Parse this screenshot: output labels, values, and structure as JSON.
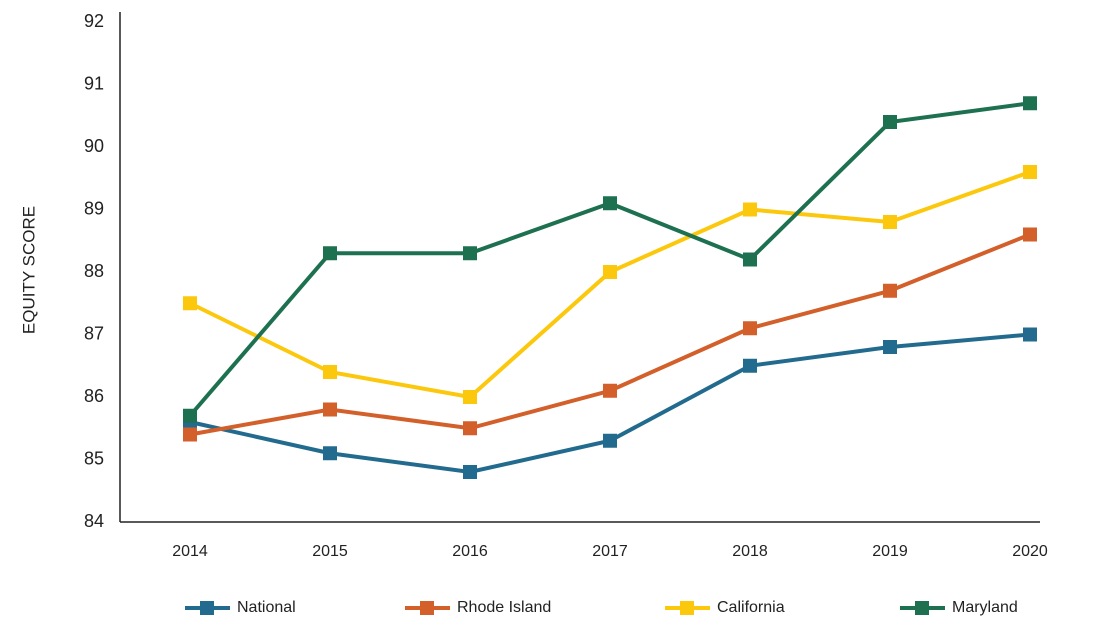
{
  "chart_data": {
    "type": "line",
    "y_label": "EQUITY SCORE",
    "categories": [
      "2014",
      "2015",
      "2016",
      "2017",
      "2018",
      "2019",
      "2020"
    ],
    "series": [
      {
        "name": "National",
        "color": "#236b8e",
        "values": [
          85.6,
          85.1,
          84.8,
          85.3,
          86.5,
          86.8,
          87.0
        ]
      },
      {
        "name": "Rhode Island",
        "color": "#d35f2a",
        "values": [
          85.4,
          85.8,
          85.5,
          86.1,
          87.1,
          87.7,
          88.6
        ]
      },
      {
        "name": "California",
        "color": "#fcc80d",
        "values": [
          87.5,
          86.4,
          86.0,
          88.0,
          89.0,
          88.8,
          89.6
        ]
      },
      {
        "name": "Maryland",
        "color": "#1d7150",
        "values": [
          85.7,
          88.3,
          88.3,
          89.1,
          88.2,
          90.4,
          90.7
        ]
      }
    ],
    "ylim": [
      84,
      92
    ],
    "yticks": [
      84,
      85,
      86,
      87,
      88,
      89,
      90,
      91,
      92
    ],
    "grid": false,
    "legend": "bottom"
  }
}
